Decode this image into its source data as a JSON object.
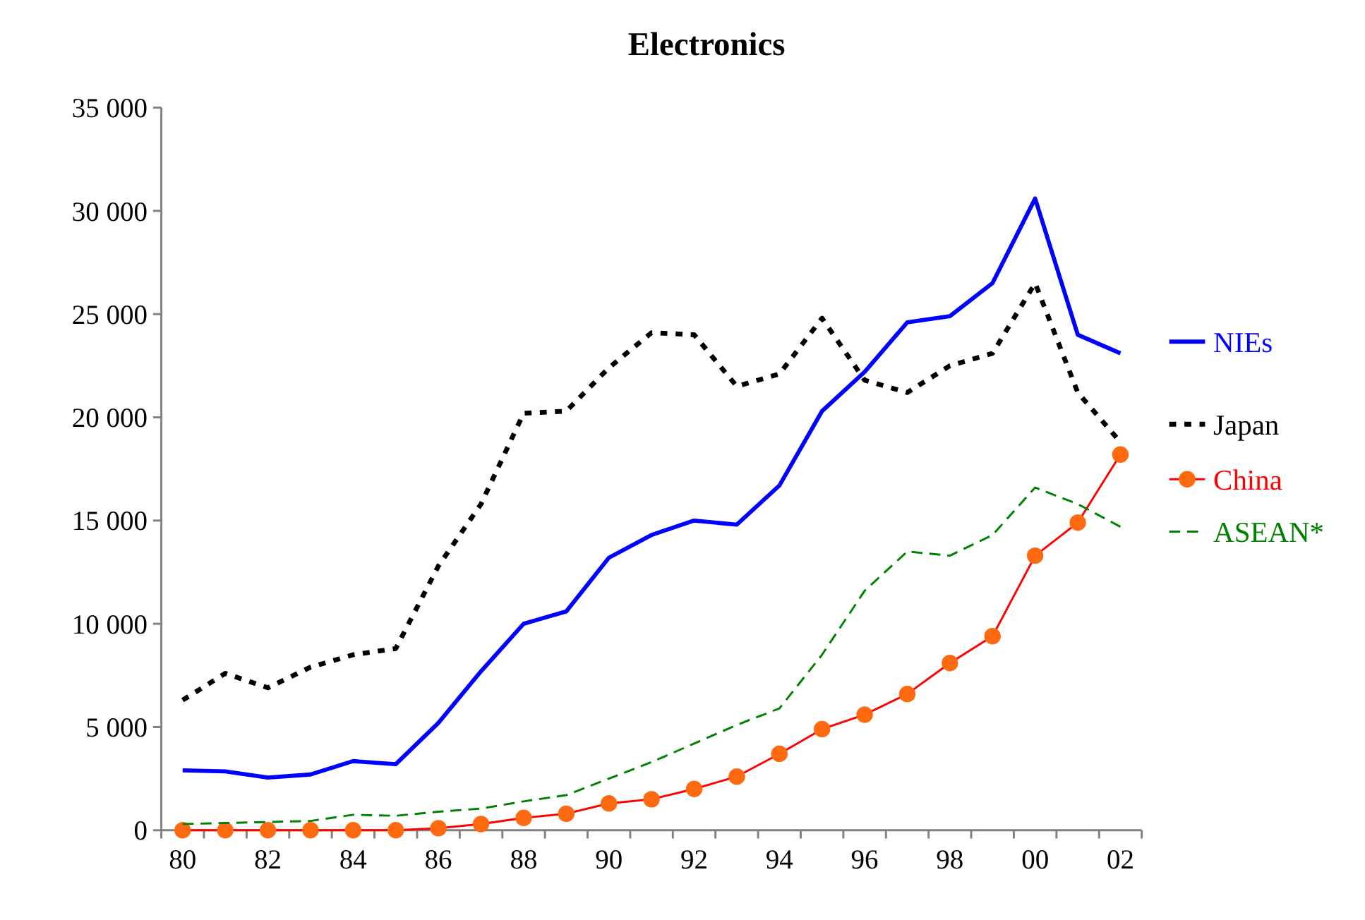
{
  "chart_data": {
    "type": "line",
    "title": "Electronics",
    "categories": [
      "80",
      null,
      "82",
      null,
      "84",
      null,
      "86",
      null,
      "88",
      null,
      "90",
      null,
      "92",
      null,
      "94",
      null,
      "96",
      null,
      "98",
      null,
      "00",
      null,
      "02"
    ],
    "series": [
      {
        "name": "NIEs",
        "color": "#0000ff",
        "line_style": "solid",
        "marker": "none",
        "values": [
          2900,
          2850,
          2550,
          2700,
          3350,
          3200,
          5200,
          7700,
          10000,
          10600,
          13200,
          14300,
          15000,
          14800,
          16700,
          20300,
          22200,
          24600,
          24900,
          26500,
          30600,
          24000,
          23100
        ]
      },
      {
        "name": "Japan",
        "color": "#000000",
        "line_style": "dotted",
        "marker": "none",
        "values": [
          6300,
          7600,
          6900,
          7900,
          8500,
          8800,
          12800,
          15800,
          20200,
          20300,
          22400,
          24100,
          24000,
          21500,
          22100,
          24800,
          21800,
          21200,
          22500,
          23100,
          26500,
          21200,
          18800
        ]
      },
      {
        "name": "China",
        "color": "#ff0000",
        "line_style": "solid",
        "marker": "circle",
        "values": [
          0,
          0,
          0,
          0,
          0,
          0,
          100,
          300,
          600,
          800,
          1300,
          1500,
          2000,
          2600,
          3700,
          4900,
          5600,
          6600,
          8100,
          9400,
          13300,
          14900,
          18200
        ]
      },
      {
        "name": "ASEAN*",
        "color": "#008000",
        "line_style": "dashed",
        "marker": "none",
        "values": [
          300,
          350,
          400,
          450,
          750,
          700,
          900,
          1050,
          1400,
          1700,
          2500,
          3300,
          4200,
          5100,
          5900,
          8500,
          11600,
          13500,
          13300,
          14300,
          16600,
          15800,
          14700
        ]
      }
    ],
    "ylim": [
      0,
      35000
    ],
    "yticks": [
      {
        "value": 0,
        "label": "0"
      },
      {
        "value": 5000,
        "label": "5 000"
      },
      {
        "value": 10000,
        "label": "10 000"
      },
      {
        "value": 15000,
        "label": "15 000"
      },
      {
        "value": 20000,
        "label": "20 000"
      },
      {
        "value": 25000,
        "label": "25 000"
      },
      {
        "value": 30000,
        "label": "30 000"
      },
      {
        "value": 35000,
        "label": "35 000"
      }
    ],
    "grid": false,
    "legend": "right"
  }
}
